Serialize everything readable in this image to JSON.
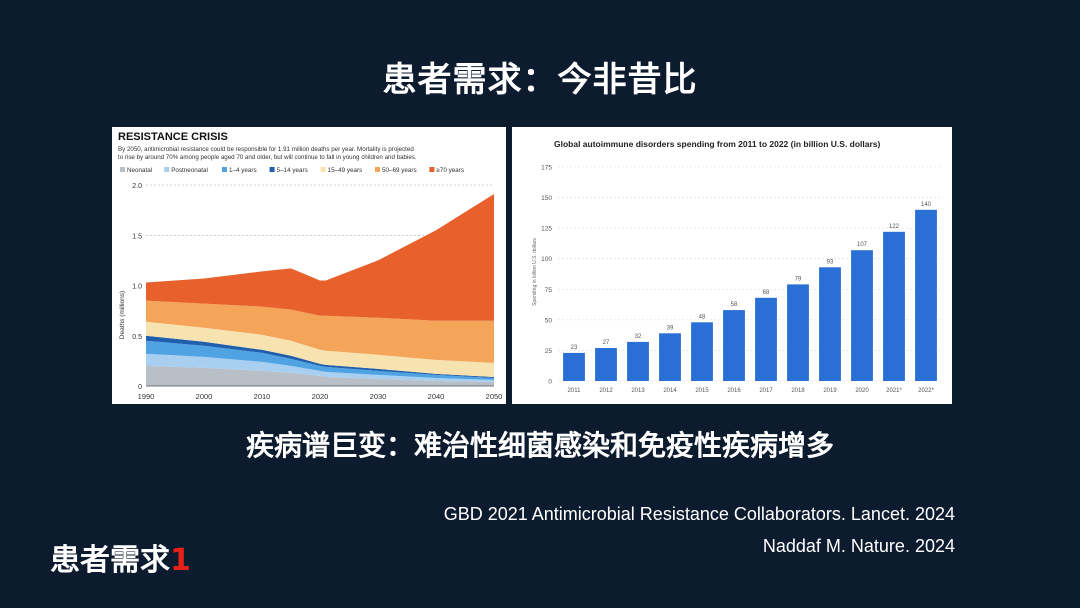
{
  "title": "患者需求：今非昔比",
  "subtitle": "疾病谱巨变：难治性细菌感染和免疫性疾病增多",
  "references": [
    "GBD 2021 Antimicrobial Resistance Collaborators. Lancet. 2024",
    "Naddaf M. Nature. 2024"
  ],
  "footer": {
    "label": "患者需求",
    "number": "1"
  },
  "colors": {
    "background": "#0d1b2e",
    "accent": "#e62117",
    "bar": "#2a6fd6"
  },
  "chart_data": [
    {
      "type": "area",
      "title": "RESISTANCE CRISIS",
      "description_lines": [
        "By 2050, antimicrobial resistance could be responsible for 1.91 million deaths per year. Mortality is projected",
        "to rise by around 70% among people aged 70 and older, but will continue to fall in young children and babies."
      ],
      "ylabel": "Deaths (millions)",
      "xlabel": "",
      "ylim": [
        0,
        2.0
      ],
      "xlim": [
        1990,
        2050
      ],
      "y_ticks": [
        "0",
        "0.5",
        "1.0",
        "1.5",
        "2.0"
      ],
      "x_ticks": [
        "1990",
        "2000",
        "2010",
        "2020",
        "2030",
        "2040",
        "2050"
      ],
      "stacked": true,
      "x": [
        1990,
        2000,
        2010,
        2015,
        2020,
        2021,
        2030,
        2040,
        2050
      ],
      "series": [
        {
          "name": "Neonatal",
          "color": "#b8bfc7",
          "values": [
            0.2,
            0.18,
            0.15,
            0.13,
            0.1,
            0.09,
            0.07,
            0.05,
            0.04
          ]
        },
        {
          "name": "Postneonatal",
          "color": "#a9cff0",
          "values": [
            0.12,
            0.11,
            0.09,
            0.07,
            0.05,
            0.05,
            0.04,
            0.03,
            0.02
          ]
        },
        {
          "name": "1–4 years",
          "color": "#4fa3e3",
          "values": [
            0.13,
            0.11,
            0.09,
            0.07,
            0.05,
            0.05,
            0.04,
            0.03,
            0.02
          ]
        },
        {
          "name": "5–14 years",
          "color": "#1f5fae",
          "values": [
            0.05,
            0.04,
            0.03,
            0.03,
            0.02,
            0.02,
            0.02,
            0.01,
            0.01
          ]
        },
        {
          "name": "15–49 years",
          "color": "#f7e3b0",
          "values": [
            0.14,
            0.14,
            0.15,
            0.15,
            0.14,
            0.14,
            0.14,
            0.14,
            0.14
          ]
        },
        {
          "name": "50–69 years",
          "color": "#f4a55a",
          "values": [
            0.21,
            0.24,
            0.28,
            0.31,
            0.34,
            0.35,
            0.37,
            0.39,
            0.42
          ]
        },
        {
          "name": "≥70 years",
          "color": "#e8602c",
          "values": [
            0.18,
            0.25,
            0.35,
            0.41,
            0.35,
            0.35,
            0.57,
            0.9,
            1.26
          ]
        }
      ]
    },
    {
      "type": "bar",
      "title": "Global autoimmune disorders spending from 2011 to 2022 (in billion U.S. dollars)",
      "ylabel": "Spending in billion U.S. dollars",
      "xlabel": "",
      "ylim": [
        0,
        175
      ],
      "y_ticks": [
        "0",
        "25",
        "50",
        "75",
        "100",
        "125",
        "150",
        "175"
      ],
      "categories": [
        "2011",
        "2012",
        "2013",
        "2014",
        "2015",
        "2016",
        "2017",
        "2018",
        "2019",
        "2020",
        "2021*",
        "2022*"
      ],
      "values": [
        23,
        27,
        32,
        39,
        48,
        58,
        68,
        79,
        93,
        107,
        122,
        140
      ],
      "value_labels": [
        "23",
        "27",
        "32",
        "39",
        "48",
        "58",
        "68",
        "79",
        "93",
        "107",
        "122",
        "140"
      ]
    }
  ]
}
